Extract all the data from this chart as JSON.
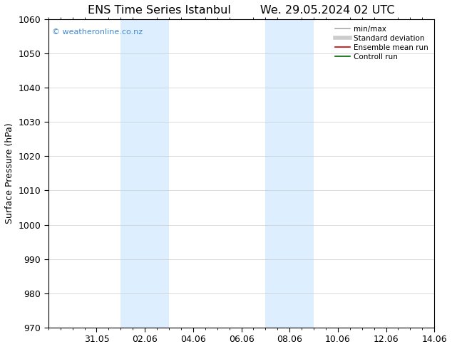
{
  "title_left": "ENS Time Series Istanbul",
  "title_right": "We. 29.05.2024 02 UTC",
  "ylabel": "Surface Pressure (hPa)",
  "ylim": [
    970,
    1060
  ],
  "yticks": [
    970,
    980,
    990,
    1000,
    1010,
    1020,
    1030,
    1040,
    1050,
    1060
  ],
  "xlim": [
    0,
    16
  ],
  "xtick_labels": [
    "31.05",
    "02.06",
    "04.06",
    "06.06",
    "08.06",
    "10.06",
    "12.06",
    "14.06"
  ],
  "xtick_positions": [
    2,
    4,
    6,
    8,
    10,
    12,
    14,
    16
  ],
  "shaded_bands": [
    {
      "x_start": 3,
      "x_end": 5
    },
    {
      "x_start": 9,
      "x_end": 11
    }
  ],
  "shaded_color": "#ddeeff",
  "watermark_text": "© weatheronline.co.nz",
  "watermark_color": "#4488cc",
  "legend_entries": [
    {
      "label": "min/max",
      "color": "#aaaaaa",
      "lw": 1.2
    },
    {
      "label": "Standard deviation",
      "color": "#cccccc",
      "lw": 4
    },
    {
      "label": "Ensemble mean run",
      "color": "#cc0000",
      "lw": 1.2
    },
    {
      "label": "Controll run",
      "color": "#006600",
      "lw": 1.2
    }
  ],
  "background_color": "#ffffff",
  "grid_color": "#cccccc",
  "font_color": "#000000",
  "title_fontsize": 11.5,
  "label_fontsize": 9,
  "tick_fontsize": 9,
  "legend_fontsize": 7.5
}
